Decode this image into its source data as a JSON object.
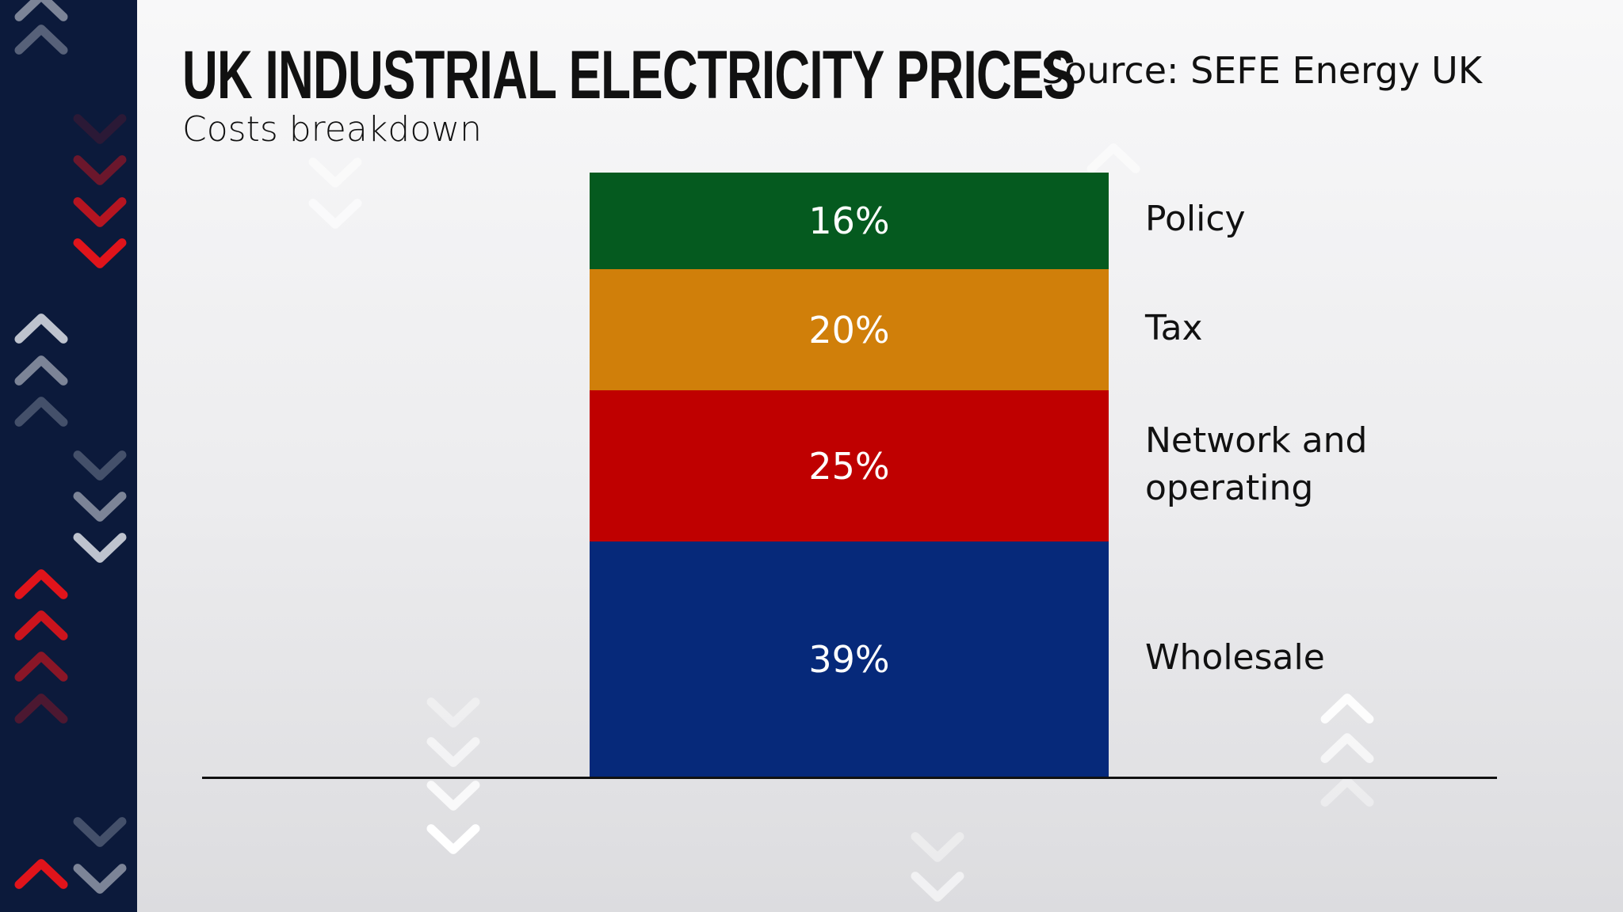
{
  "header": {
    "title": "UK INDUSTRIAL ELECTRICITY PRICES",
    "subtitle": "Costs breakdown",
    "source": "Source: SEFE Energy UK"
  },
  "chart_data": {
    "type": "bar",
    "stacked": true,
    "title": "UK INDUSTRIAL ELECTRICITY PRICES",
    "subtitle": "Costs breakdown",
    "unit": "%",
    "legend_placement": "right",
    "grid": false,
    "series": [
      {
        "name": "Wholesale",
        "value": 39,
        "label": "39%",
        "color": "#06297a"
      },
      {
        "name": "Network and operating",
        "value": 25,
        "label": "25%",
        "color": "#bf0000"
      },
      {
        "name": "Tax",
        "value": 20,
        "label": "20%",
        "color": "#d07f0a"
      },
      {
        "name": "Policy",
        "value": 16,
        "label": "16%",
        "color": "#055a1f"
      }
    ]
  },
  "colors": {
    "sidebar": "#0c1a3b",
    "accent_red": "#e0141b"
  }
}
